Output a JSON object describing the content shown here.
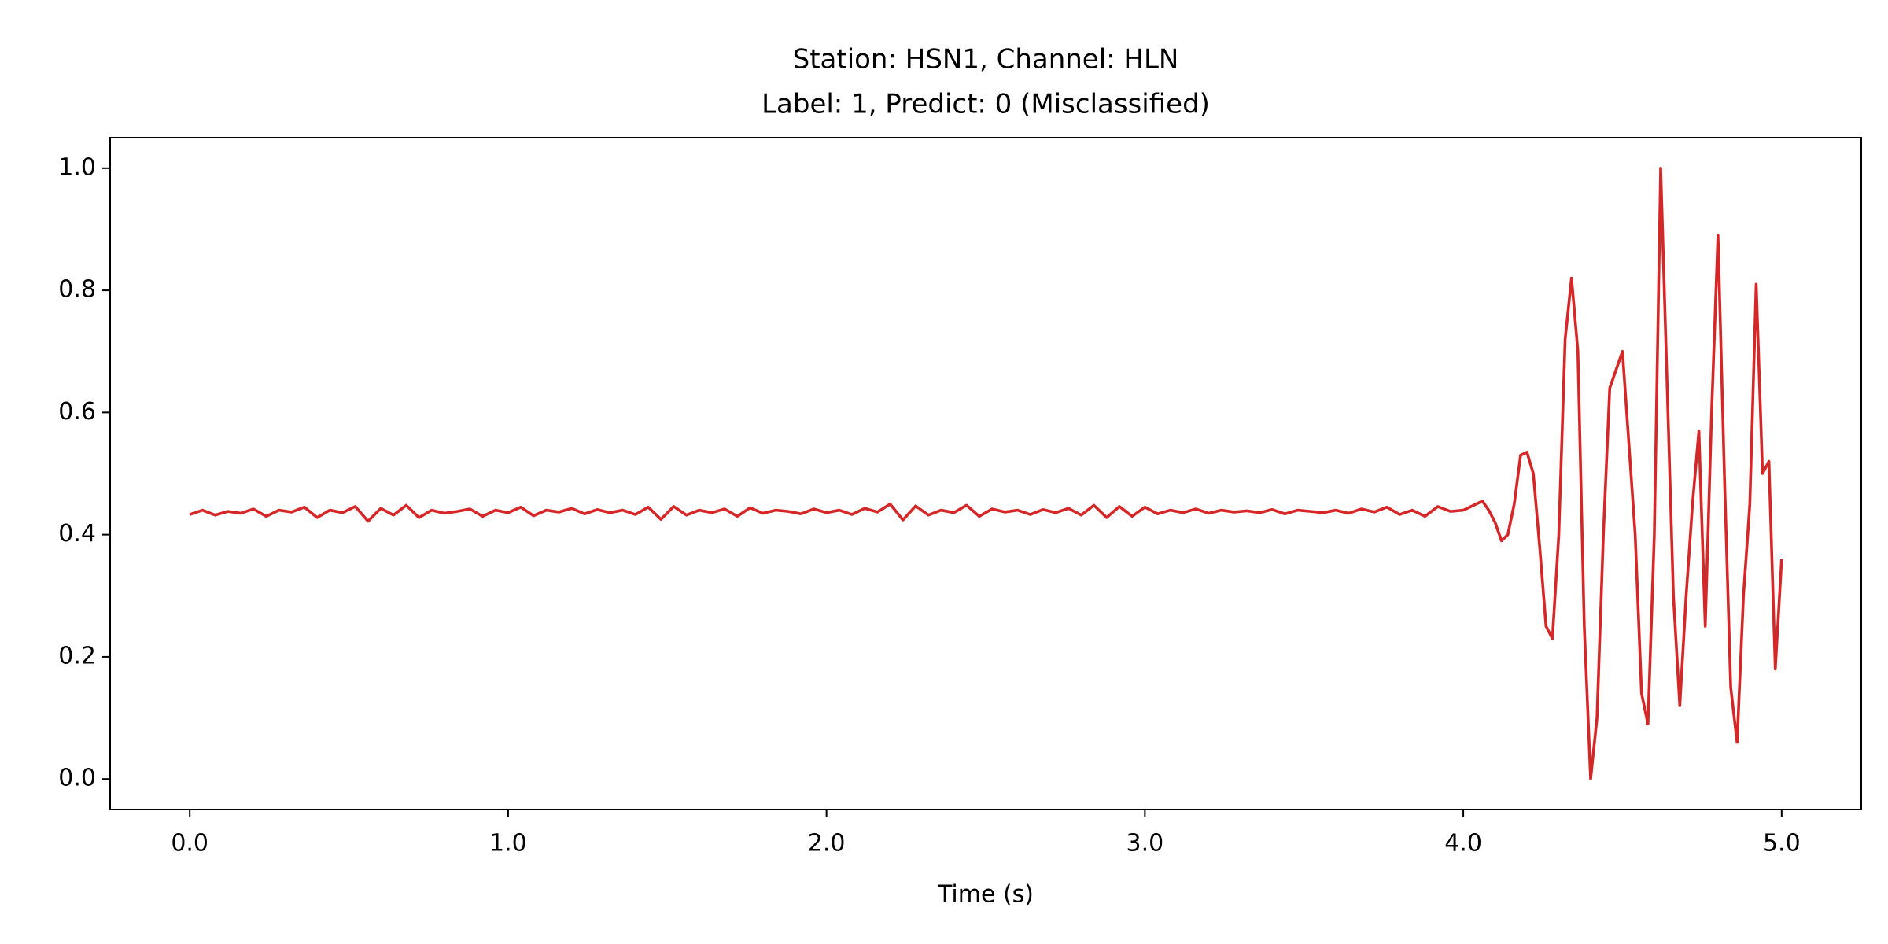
{
  "chart_data": {
    "type": "line",
    "title": "Station: HSN1, Channel: HLN",
    "subtitle": "Label: 1, Predict: 0 (Misclassified)",
    "x_label": "Time (s)",
    "x": [
      0,
      0.04,
      0.08,
      0.12,
      0.16,
      0.2,
      0.24,
      0.28,
      0.32,
      0.36,
      0.4,
      0.44,
      0.48,
      0.52,
      0.56,
      0.6,
      0.64,
      0.68,
      0.72,
      0.76,
      0.8,
      0.84,
      0.88,
      0.92,
      0.96,
      1,
      1.04,
      1.08,
      1.12,
      1.16,
      1.2,
      1.24,
      1.28,
      1.32,
      1.36,
      1.4,
      1.44,
      1.48,
      1.52,
      1.56,
      1.6,
      1.64,
      1.68,
      1.72,
      1.76,
      1.8,
      1.84,
      1.88,
      1.92,
      1.96,
      2,
      2.04,
      2.08,
      2.12,
      2.16,
      2.2,
      2.24,
      2.28,
      2.32,
      2.36,
      2.4,
      2.44,
      2.48,
      2.52,
      2.56,
      2.6,
      2.64,
      2.68,
      2.72,
      2.76,
      2.8,
      2.84,
      2.88,
      2.92,
      2.96,
      3,
      3.04,
      3.08,
      3.12,
      3.16,
      3.2,
      3.24,
      3.28,
      3.32,
      3.36,
      3.4,
      3.44,
      3.48,
      3.52,
      3.56,
      3.6,
      3.64,
      3.68,
      3.72,
      3.76,
      3.8,
      3.84,
      3.88,
      3.92,
      3.96,
      4,
      4.02,
      4.04,
      4.06,
      4.08,
      4.1,
      4.12,
      4.14,
      4.16,
      4.18,
      4.2,
      4.22,
      4.24,
      4.26,
      4.28,
      4.3,
      4.32,
      4.34,
      4.36,
      4.38,
      4.4,
      4.42,
      4.44,
      4.46,
      4.48,
      4.5,
      4.52,
      4.54,
      4.56,
      4.58,
      4.6,
      4.62,
      4.64,
      4.66,
      4.68,
      4.7,
      4.72,
      4.74,
      4.76,
      4.78,
      4.8,
      4.82,
      4.84,
      4.86,
      4.88,
      4.9,
      4.92,
      4.94,
      4.96,
      4.98,
      5
    ],
    "series": [
      {
        "color": "#d62728",
        "values": [
          0.433,
          0.44,
          0.432,
          0.438,
          0.435,
          0.442,
          0.43,
          0.44,
          0.437,
          0.445,
          0.428,
          0.44,
          0.436,
          0.446,
          0.422,
          0.443,
          0.432,
          0.448,
          0.428,
          0.44,
          0.435,
          0.438,
          0.442,
          0.43,
          0.44,
          0.436,
          0.445,
          0.431,
          0.44,
          0.437,
          0.443,
          0.434,
          0.441,
          0.436,
          0.44,
          0.433,
          0.445,
          0.425,
          0.446,
          0.432,
          0.44,
          0.436,
          0.442,
          0.43,
          0.444,
          0.435,
          0.44,
          0.438,
          0.434,
          0.442,
          0.436,
          0.44,
          0.433,
          0.443,
          0.437,
          0.45,
          0.424,
          0.447,
          0.432,
          0.44,
          0.436,
          0.448,
          0.43,
          0.442,
          0.437,
          0.44,
          0.433,
          0.441,
          0.436,
          0.443,
          0.432,
          0.448,
          0.428,
          0.446,
          0.43,
          0.445,
          0.434,
          0.44,
          0.436,
          0.442,
          0.435,
          0.44,
          0.437,
          0.439,
          0.436,
          0.441,
          0.434,
          0.44,
          0.438,
          0.436,
          0.44,
          0.435,
          0.442,
          0.437,
          0.445,
          0.433,
          0.44,
          0.43,
          0.446,
          0.438,
          0.44,
          0.445,
          0.45,
          0.455,
          0.44,
          0.42,
          0.39,
          0.4,
          0.45,
          0.53,
          0.535,
          0.5,
          0.38,
          0.25,
          0.23,
          0.4,
          0.72,
          0.82,
          0.7,
          0.25,
          0,
          0.1,
          0.4,
          0.64,
          0.67,
          0.7,
          0.55,
          0.4,
          0.14,
          0.09,
          0.4,
          1,
          0.65,
          0.3,
          0.12,
          0.3,
          0.45,
          0.57,
          0.25,
          0.6,
          0.89,
          0.5,
          0.15,
          0.06,
          0.3,
          0.45,
          0.81,
          0.5,
          0.52,
          0.18,
          0.36
        ]
      }
    ],
    "xlim": [
      -0.25,
      5.25
    ],
    "ylim": [
      -0.05,
      1.05
    ],
    "xticks": [
      {
        "value": 0,
        "label": "0.0"
      },
      {
        "value": 1,
        "label": "1.0"
      },
      {
        "value": 2,
        "label": "2.0"
      },
      {
        "value": 3,
        "label": "3.0"
      },
      {
        "value": 4,
        "label": "4.0"
      },
      {
        "value": 5,
        "label": "5.0"
      }
    ],
    "yticks": [
      {
        "value": 0,
        "label": "0.0"
      },
      0.2,
      0.4,
      0.6,
      0.8,
      {
        "value": 1,
        "label": "1.0"
      }
    ],
    "grid": false
  }
}
